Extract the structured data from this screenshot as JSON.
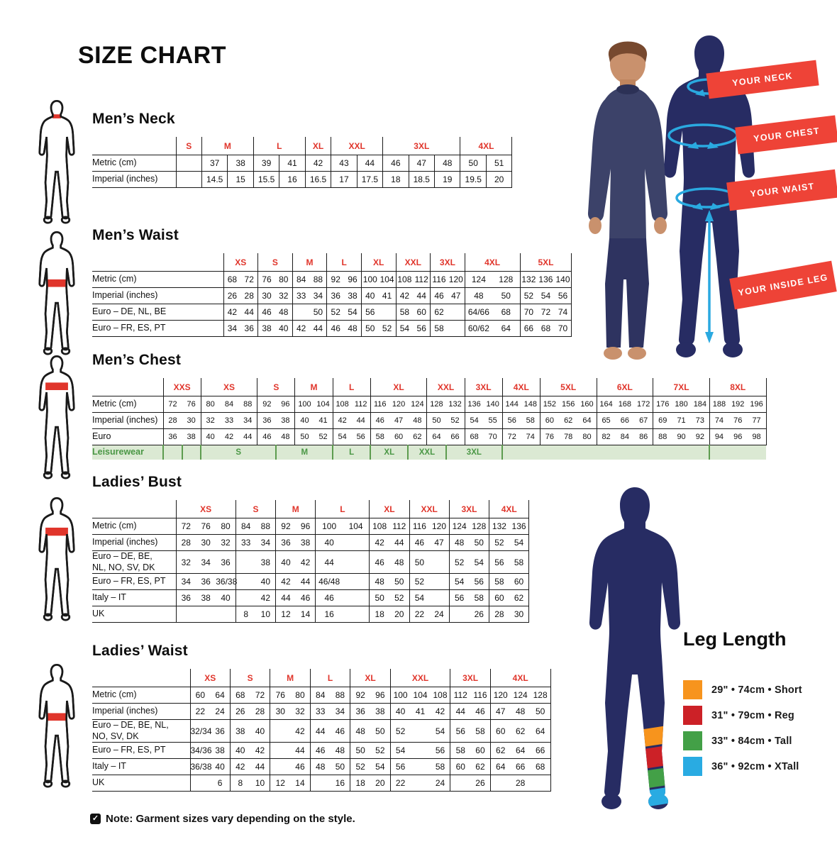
{
  "title": "SIZE CHART",
  "note": "Note: Garment sizes vary depending on the style.",
  "colors": {
    "size_header_red": "#e0352b",
    "banner_red": "#ee4337",
    "navy": "#272c63",
    "cyan": "#2aa9e0",
    "leisure_green": "#4a9745",
    "leisure_bg": "#dbe9d3"
  },
  "banners": {
    "neck": "YOUR NECK",
    "chest": "YOUR CHEST",
    "waist": "YOUR WAIST",
    "inside_leg": "YOUR INSIDE LEG"
  },
  "leg_length": {
    "title": "Leg Length",
    "items": [
      {
        "color": "#f7941d",
        "label": "29\" • 74cm • Short"
      },
      {
        "color": "#cc2127",
        "label": "31\" • 79cm • Reg"
      },
      {
        "color": "#43a047",
        "label": "33\" • 84cm • Tall"
      },
      {
        "color": "#29abe2",
        "label": "36\" • 92cm • XTall"
      }
    ]
  },
  "tables": [
    {
      "id": "mens-neck",
      "title": "Men’s Neck",
      "all_cell_borders": true,
      "sizes": [
        {
          "label": "S",
          "span": 1
        },
        {
          "label": "M",
          "span": 2
        },
        {
          "label": "L",
          "span": 2
        },
        {
          "label": "XL",
          "span": 1
        },
        {
          "label": "XXL",
          "span": 2
        },
        {
          "label": "3XL",
          "span": 3
        },
        {
          "label": "4XL",
          "span": 2
        }
      ],
      "rows": [
        {
          "label": "Metric (cm)",
          "cells": [
            "",
            "37",
            "38",
            "39",
            "41",
            "42",
            "43",
            "44",
            "46",
            "47",
            "48",
            "50",
            "51"
          ]
        },
        {
          "label": "Imperial (inches)",
          "cells": [
            "",
            "14.5",
            "15",
            "15.5",
            "16",
            "16.5",
            "17",
            "17.5",
            "18",
            "18.5",
            "19",
            "19.5",
            "20"
          ]
        }
      ]
    },
    {
      "id": "mens-waist",
      "title": "Men’s Waist",
      "sizes": [
        {
          "label": "XS",
          "span": 2
        },
        {
          "label": "S",
          "span": 2
        },
        {
          "label": "M",
          "span": 2
        },
        {
          "label": "L",
          "span": 2
        },
        {
          "label": "XL",
          "span": 2
        },
        {
          "label": "XXL",
          "span": 2
        },
        {
          "label": "3XL",
          "span": 2
        },
        {
          "label": "4XL",
          "span": 2
        },
        {
          "label": "5XL",
          "span": 3
        }
      ],
      "rows": [
        {
          "label": "Metric (cm)",
          "cells": [
            "68",
            "72",
            "76",
            "80",
            "84",
            "88",
            "92",
            "96",
            "100",
            "104",
            "108",
            "112",
            "116",
            "120",
            "124",
            "128",
            "132",
            "136",
            "140"
          ]
        },
        {
          "label": "Imperial (inches)",
          "cells": [
            "26",
            "28",
            "30",
            "32",
            "33",
            "34",
            "36",
            "38",
            "40",
            "41",
            "42",
            "44",
            "46",
            "47",
            "48",
            "50",
            "52",
            "54",
            "56"
          ]
        },
        {
          "label": "Euro – DE, NL, BE",
          "cells": [
            "42",
            "44",
            "46",
            "48",
            "",
            "50",
            "52",
            "54",
            "56",
            "",
            "58",
            "60",
            "62",
            "",
            "64/66",
            "68",
            "70",
            "72",
            "74"
          ]
        },
        {
          "label": "Euro – FR, ES, PT",
          "cells": [
            "34",
            "36",
            "38",
            "40",
            "42",
            "44",
            "46",
            "48",
            "50",
            "52",
            "54",
            "56",
            "58",
            "",
            "60/62",
            "64",
            "66",
            "68",
            "70"
          ]
        }
      ]
    },
    {
      "id": "mens-chest",
      "title": "Men’s Chest",
      "sizes": [
        {
          "label": "XXS",
          "span": 2
        },
        {
          "label": "XS",
          "span": 3
        },
        {
          "label": "S",
          "span": 2
        },
        {
          "label": "M",
          "span": 2
        },
        {
          "label": "L",
          "span": 2
        },
        {
          "label": "XL",
          "span": 3
        },
        {
          "label": "XXL",
          "span": 2
        },
        {
          "label": "3XL",
          "span": 2
        },
        {
          "label": "4XL",
          "span": 2
        },
        {
          "label": "5XL",
          "span": 3
        },
        {
          "label": "6XL",
          "span": 3
        },
        {
          "label": "7XL",
          "span": 3
        },
        {
          "label": "8XL",
          "span": 3
        }
      ],
      "rows": [
        {
          "label": "Metric (cm)",
          "cells": [
            "72",
            "76",
            "80",
            "84",
            "88",
            "92",
            "96",
            "100",
            "104",
            "108",
            "112",
            "116",
            "120",
            "124",
            "128",
            "132",
            "136",
            "140",
            "144",
            "148",
            "152",
            "156",
            "160",
            "164",
            "168",
            "172",
            "176",
            "180",
            "184",
            "188",
            "192",
            "196"
          ]
        },
        {
          "label": "Imperial (inches)",
          "cells": [
            "28",
            "30",
            "32",
            "33",
            "34",
            "36",
            "38",
            "40",
            "41",
            "42",
            "44",
            "46",
            "47",
            "48",
            "50",
            "52",
            "54",
            "55",
            "56",
            "58",
            "60",
            "62",
            "64",
            "65",
            "66",
            "67",
            "69",
            "71",
            "73",
            "74",
            "76",
            "77"
          ]
        },
        {
          "label": "Euro",
          "cells": [
            "36",
            "38",
            "40",
            "42",
            "44",
            "46",
            "48",
            "50",
            "52",
            "54",
            "56",
            "58",
            "60",
            "62",
            "64",
            "66",
            "68",
            "70",
            "72",
            "74",
            "76",
            "78",
            "80",
            "82",
            "84",
            "86",
            "88",
            "90",
            "92",
            "94",
            "96",
            "98"
          ]
        },
        {
          "label": "Leisurewear",
          "leisure": true,
          "groups": [
            {
              "label": "",
              "span": 1
            },
            {
              "label": "",
              "span": 1
            },
            {
              "label": "S",
              "span": 4
            },
            {
              "label": "M",
              "span": 3
            },
            {
              "label": "L",
              "span": 2
            },
            {
              "label": "XL",
              "span": 2
            },
            {
              "label": "XXL",
              "span": 2
            },
            {
              "label": "3XL",
              "span": 3
            },
            {
              "label": "",
              "span": 11
            },
            {
              "label": "",
              "span": 3
            }
          ]
        }
      ]
    },
    {
      "id": "ladies-bust",
      "title": "Ladies’ Bust",
      "sizes": [
        {
          "label": "XS",
          "span": 3
        },
        {
          "label": "S",
          "span": 2
        },
        {
          "label": "M",
          "span": 2
        },
        {
          "label": "L",
          "span": 2
        },
        {
          "label": "XL",
          "span": 2
        },
        {
          "label": "XXL",
          "span": 2
        },
        {
          "label": "3XL",
          "span": 2
        },
        {
          "label": "4XL",
          "span": 2
        }
      ],
      "rows": [
        {
          "label": "Metric (cm)",
          "cells": [
            "72",
            "76",
            "80",
            "84",
            "88",
            "92",
            "96",
            "100",
            "104",
            "108",
            "112",
            "116",
            "120",
            "124",
            "128",
            "132",
            "136"
          ]
        },
        {
          "label": "Imperial (inches)",
          "cells": [
            "28",
            "30",
            "32",
            "33",
            "34",
            "36",
            "38",
            "40",
            "",
            "42",
            "44",
            "46",
            "47",
            "48",
            "50",
            "52",
            "54"
          ]
        },
        {
          "label": "Euro –  DE, BE,\nNL, NO, SV, DK",
          "cells": [
            "32",
            "34",
            "36",
            "",
            "38",
            "40",
            "42",
            "44",
            "",
            "46",
            "48",
            "50",
            "",
            "52",
            "54",
            "56",
            "58"
          ]
        },
        {
          "label": "Euro – FR, ES, PT",
          "cells": [
            "34",
            "36",
            "36/38",
            "",
            "40",
            "42",
            "44",
            "46/48",
            "",
            "48",
            "50",
            "52",
            "",
            "54",
            "56",
            "58",
            "60"
          ]
        },
        {
          "label": "Italy – IT",
          "cells": [
            "36",
            "38",
            "40",
            "",
            "42",
            "44",
            "46",
            "46",
            "",
            "50",
            "52",
            "54",
            "",
            "56",
            "58",
            "60",
            "62"
          ]
        },
        {
          "label": "UK",
          "cells": [
            "",
            "",
            "",
            "8",
            "10",
            "12",
            "14",
            "16",
            "",
            "18",
            "20",
            "22",
            "24",
            "",
            "26",
            "28",
            "30"
          ]
        }
      ]
    },
    {
      "id": "ladies-waist",
      "title": "Ladies’ Waist",
      "sizes": [
        {
          "label": "XS",
          "span": 2
        },
        {
          "label": "S",
          "span": 2
        },
        {
          "label": "M",
          "span": 2
        },
        {
          "label": "L",
          "span": 2
        },
        {
          "label": "XL",
          "span": 2
        },
        {
          "label": "XXL",
          "span": 3
        },
        {
          "label": "3XL",
          "span": 2
        },
        {
          "label": "4XL",
          "span": 3
        }
      ],
      "rows": [
        {
          "label": "Metric (cm)",
          "cells": [
            "60",
            "64",
            "68",
            "72",
            "76",
            "80",
            "84",
            "88",
            "92",
            "96",
            "100",
            "104",
            "108",
            "112",
            "116",
            "120",
            "124",
            "128"
          ]
        },
        {
          "label": "Imperial (inches)",
          "cells": [
            "22",
            "24",
            "26",
            "28",
            "30",
            "32",
            "33",
            "34",
            "36",
            "38",
            "40",
            "41",
            "42",
            "44",
            "46",
            "47",
            "48",
            "50"
          ]
        },
        {
          "label": "Euro – DE, BE, NL,\nNO, SV, DK",
          "cells": [
            "32/34",
            "36",
            "38",
            "40",
            "",
            "42",
            "44",
            "46",
            "48",
            "50",
            "52",
            "",
            "54",
            "56",
            "58",
            "60",
            "62",
            "64"
          ]
        },
        {
          "label": "Euro – FR, ES, PT",
          "cells": [
            "34/36",
            "38",
            "40",
            "42",
            "",
            "44",
            "46",
            "48",
            "50",
            "52",
            "54",
            "",
            "56",
            "58",
            "60",
            "62",
            "64",
            "66"
          ]
        },
        {
          "label": "Italy – IT",
          "cells": [
            "36/38",
            "40",
            "42",
            "44",
            "",
            "46",
            "48",
            "50",
            "52",
            "54",
            "56",
            "",
            "58",
            "60",
            "62",
            "64",
            "66",
            "68"
          ]
        },
        {
          "label": "UK",
          "cells": [
            "",
            "6",
            "8",
            "10",
            "12",
            "14",
            "",
            "16",
            "18",
            "20",
            "22",
            "",
            "24",
            "",
            "26",
            "",
            "28",
            ""
          ]
        }
      ]
    }
  ]
}
